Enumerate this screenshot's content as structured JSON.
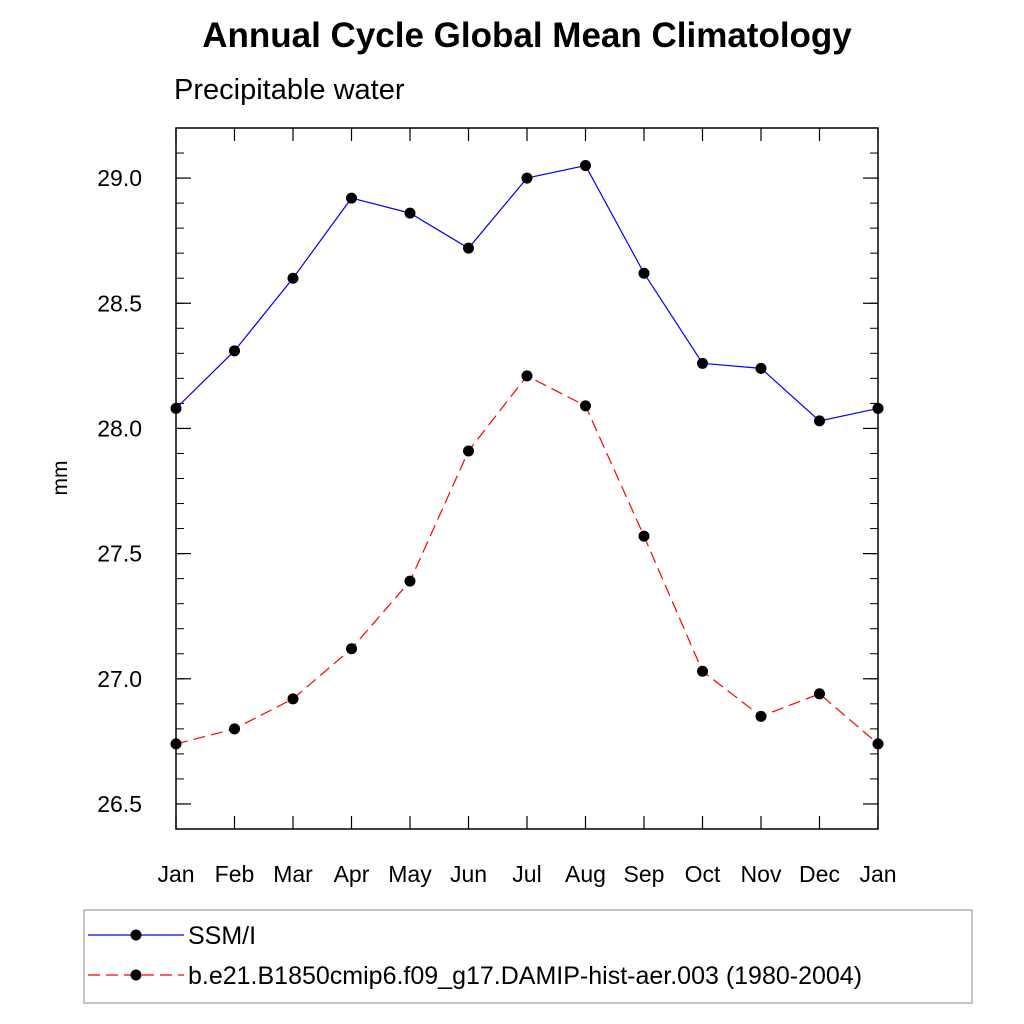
{
  "chart_data": {
    "type": "line",
    "title": "Annual Cycle Global Mean Climatology",
    "subtitle": "Precipitable water",
    "xlabel": "",
    "ylabel": "mm",
    "categories": [
      "Jan",
      "Feb",
      "Mar",
      "Apr",
      "May",
      "Jun",
      "Jul",
      "Aug",
      "Sep",
      "Oct",
      "Nov",
      "Dec",
      "Jan"
    ],
    "ylim": [
      26.4,
      29.2
    ],
    "yticks": [
      "26.5",
      "27.0",
      "27.5",
      "28.0",
      "28.5",
      "29.0"
    ],
    "grid": false,
    "legend_position": "bottom",
    "series": [
      {
        "name": "SSM/I",
        "color": "#0000ff",
        "line_style": "solid",
        "marker": "filled-circle",
        "values": [
          28.08,
          28.31,
          28.6,
          28.92,
          28.86,
          28.72,
          29.0,
          29.05,
          28.62,
          28.26,
          28.24,
          28.03,
          28.08
        ]
      },
      {
        "name": "b.e21.B1850cmip6.f09_g17.DAMIP-hist-aer.003 (1980-2004)",
        "color": "#ff0000",
        "line_style": "dashed",
        "marker": "filled-circle",
        "values": [
          26.74,
          26.8,
          26.92,
          27.12,
          27.39,
          27.91,
          28.21,
          28.09,
          27.57,
          27.03,
          26.85,
          26.94,
          26.74
        ]
      }
    ]
  }
}
